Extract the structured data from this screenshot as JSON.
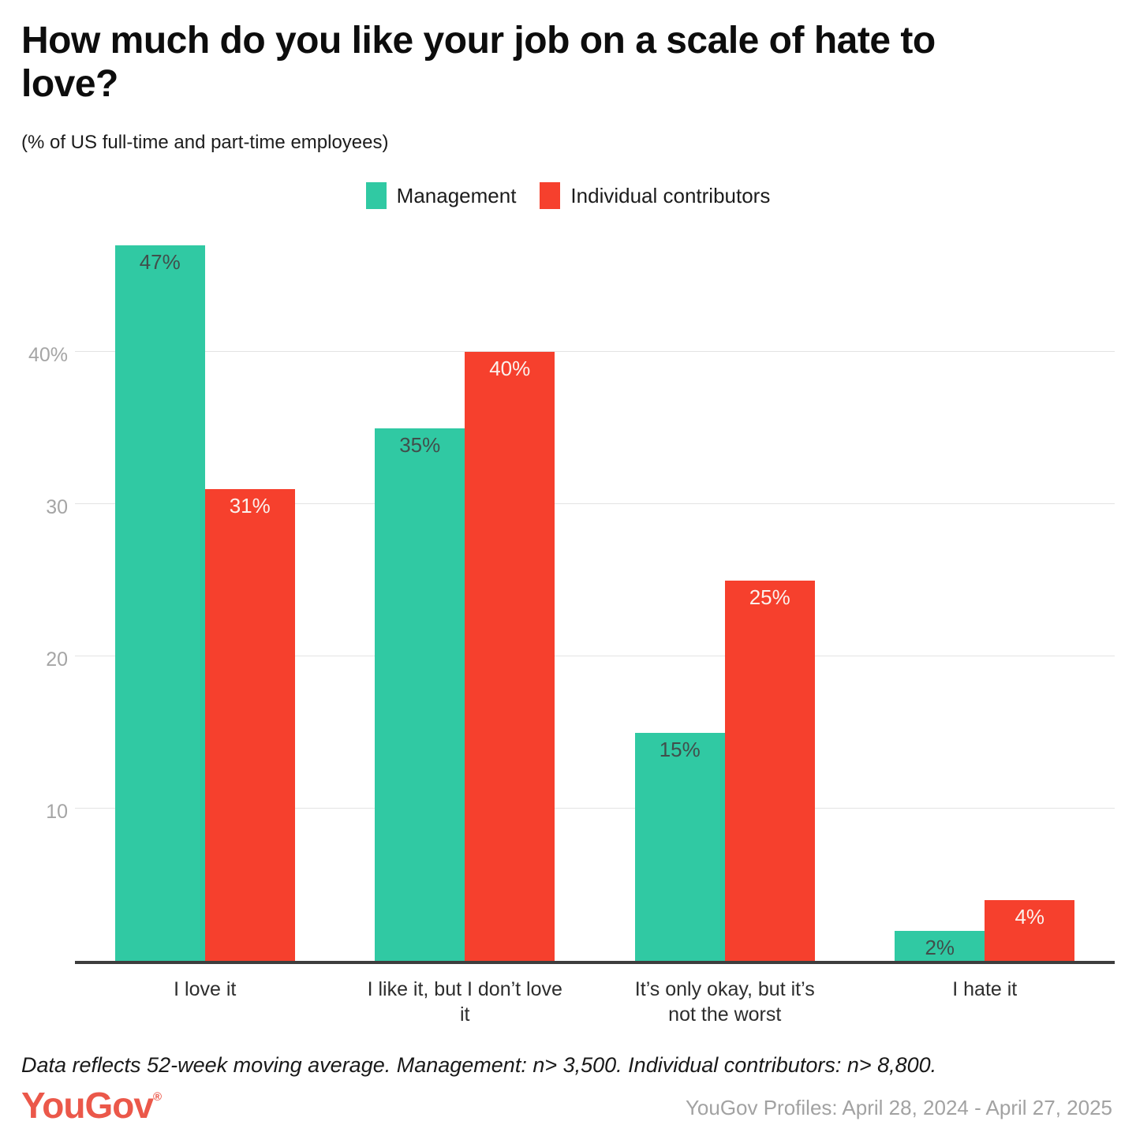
{
  "header": {
    "title": "How much do you like your job on a scale of hate to love?",
    "subtitle": "(% of US full-time and part-time employees)"
  },
  "legend": [
    {
      "label": "Management",
      "color": "#30c9a3"
    },
    {
      "label": "Individual contributors",
      "color": "#f6402d"
    }
  ],
  "chart_data": {
    "type": "bar",
    "title": "How much do you like your job on a scale of hate to love?",
    "subtitle": "(% of US full-time and part-time employees)",
    "categories": [
      "I love it",
      "I like it, but I don’t love it",
      "It’s only okay, but it’s not the worst",
      "I hate it"
    ],
    "series": [
      {
        "name": "Management",
        "color": "#30c9a3",
        "label_color": "#414e4b",
        "values": [
          47,
          35,
          15,
          2
        ]
      },
      {
        "name": "Individual contributors",
        "color": "#f6402d",
        "label_color": "#fbf1ed",
        "values": [
          31,
          40,
          25,
          4
        ]
      }
    ],
    "value_suffix": "%",
    "yticks": [
      {
        "label": "40%",
        "value": 40
      },
      {
        "label": "30",
        "value": 30
      },
      {
        "label": "20",
        "value": 20
      },
      {
        "label": "10",
        "value": 10
      }
    ],
    "ylim": [
      0,
      47.5
    ],
    "grid": true,
    "legend_position": "top",
    "xlabel": "",
    "ylabel": ""
  },
  "footer": {
    "note": "Data reflects 52-week moving average. Management: n> 3,500. Individual contributors: n> 8,800.",
    "logo": "YouGov",
    "logo_mark": "®",
    "source": "YouGov Profiles: April 28, 2024 - April 27, 2025"
  }
}
